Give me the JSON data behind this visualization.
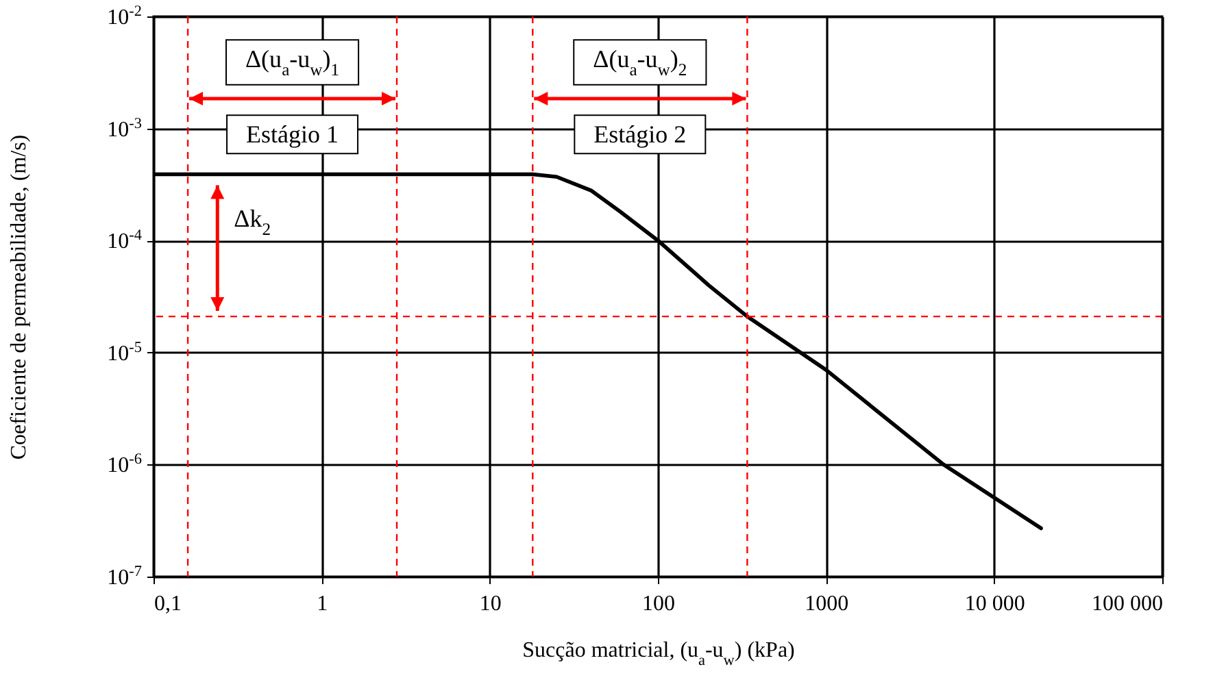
{
  "chart_data": {
    "type": "line",
    "xlabel": "Sucção matricial, (u$_{a}$-u$_{w}$) (kPa)",
    "ylabel": "Coeficiente de permeabilidade, (m/s)",
    "log": "xy",
    "grid": true,
    "marker": "none",
    "line_style": "solid",
    "xlim": [
      0.1,
      100000
    ],
    "xticks": [
      {
        "value": 0.1,
        "label": "0,1"
      },
      1,
      10,
      100,
      1000,
      {
        "value": 10000,
        "label": "10 000"
      },
      {
        "value": 100000,
        "label": "100 000"
      }
    ],
    "ylim": [
      1e-07,
      0.01
    ],
    "yticks": [
      {
        "value": 1e-07,
        "label": "10$^{-7}$"
      },
      {
        "value": 1e-06,
        "label": "10$^{-6}$"
      },
      {
        "value": 1e-05,
        "label": "10$^{-5}$"
      },
      {
        "value": 0.0001,
        "label": "10$^{-4}$"
      },
      {
        "value": 0.001,
        "label": "10$^{-3}$"
      },
      {
        "value": 0.01,
        "label": "10$^{-2}$"
      }
    ],
    "series": [
      {
        "color": "#000000",
        "x": [
          0.1,
          10,
          18,
          25,
          40,
          60,
          100,
          200,
          340,
          1000,
          5000,
          19000
        ],
        "values": [
          0.00039,
          0.00039,
          0.00039,
          0.00037,
          0.00028,
          0.00018,
          0.0001,
          4e-05,
          2.1e-05,
          7e-06,
          1e-06,
          2.7e-07
        ]
      }
    ],
    "ref_lines": [
      {
        "axis": "x",
        "value": 0.16,
        "color": "#ff0000",
        "line_style": "dashed"
      },
      {
        "axis": "x",
        "value": 2.8,
        "color": "#ff0000",
        "line_style": "dashed"
      },
      {
        "axis": "x",
        "value": 18,
        "color": "#ff0000",
        "line_style": "dashed"
      },
      {
        "axis": "x",
        "value": 340,
        "color": "#ff0000",
        "line_style": "dashed"
      },
      {
        "axis": "y",
        "value": 2.1e-05,
        "color": "#ff0000",
        "line_style": "dashed"
      }
    ],
    "annotations": [
      "Δ(u$_{a}$-u$_{w}$)$_{1}$",
      "Estágio 1",
      "Δ(u$_{a}$-u$_{w}$)$_{2}$",
      "Estágio 2",
      {
        "text": "Δk$_{2}$",
        "x": 0.24,
        "y": 2.1e-05
      }
    ]
  }
}
